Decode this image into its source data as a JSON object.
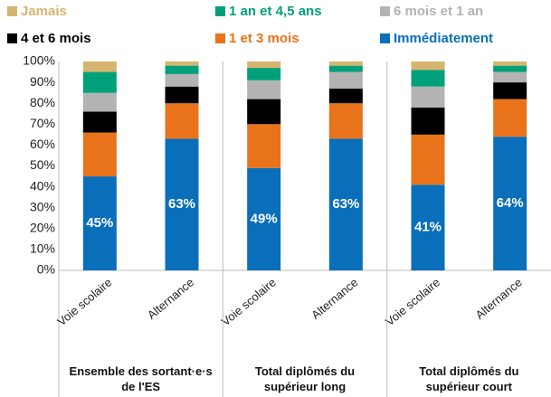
{
  "chart_data": {
    "type": "stacked_bar",
    "categories": [
      "Voie scolaire",
      "Alternance",
      "Voie scolaire",
      "Alternance",
      "Voie scolaire",
      "Alternance"
    ],
    "groups": [
      "Ensemble des sortant·e·s de l'ES",
      "Total diplômés du supérieur long",
      "Total diplômés du supérieur court"
    ],
    "series": [
      {
        "name": "Immédiatement",
        "color": "#0a6fba",
        "values": [
          45,
          63,
          49,
          63,
          41,
          64
        ],
        "value_labels": [
          "45%",
          "63%",
          "49%",
          "63%",
          "41%",
          "64%"
        ]
      },
      {
        "name": "1 et 3 mois",
        "color": "#e8731a",
        "values": [
          21,
          17,
          21,
          17,
          24,
          18
        ]
      },
      {
        "name": "4 et 6 mois",
        "color": "#000000",
        "values": [
          10,
          8,
          12,
          7,
          13,
          8
        ]
      },
      {
        "name": "6 mois et 1 an",
        "color": "#b3b3b3",
        "values": [
          9,
          6,
          9,
          8,
          10,
          5
        ]
      },
      {
        "name": "1 an et 4,5 ans",
        "color": "#00a07a",
        "values": [
          10,
          4,
          6,
          3,
          8,
          3
        ]
      },
      {
        "name": "Jamais",
        "color": "#d6b46e",
        "values": [
          5,
          2,
          3,
          2,
          4,
          2
        ]
      }
    ],
    "ylim": [
      0,
      100
    ],
    "yticks": [
      {
        "value": 0,
        "label": "0%"
      },
      {
        "value": 10,
        "label": "10%"
      },
      {
        "value": 20,
        "label": "20%"
      },
      {
        "value": 30,
        "label": "30%"
      },
      {
        "value": 40,
        "label": "40%"
      },
      {
        "value": 50,
        "label": "50%"
      },
      {
        "value": 60,
        "label": "60%"
      },
      {
        "value": 70,
        "label": "70%"
      },
      {
        "value": 80,
        "label": "80%"
      },
      {
        "value": 90,
        "label": "90%"
      },
      {
        "value": 100,
        "label": "100%"
      }
    ]
  }
}
